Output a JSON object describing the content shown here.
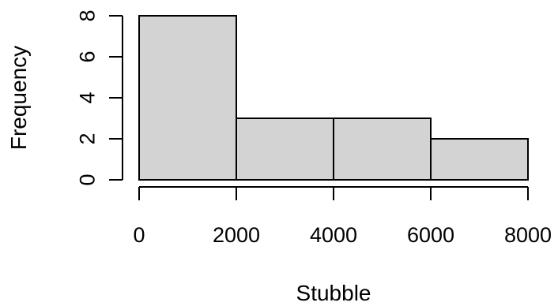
{
  "chart_data": {
    "type": "bar",
    "title": "",
    "xlabel": "Stubble",
    "ylabel": "Frequency",
    "bins": [
      {
        "x0": 0,
        "x1": 2000,
        "count": 8
      },
      {
        "x0": 2000,
        "x1": 4000,
        "count": 3
      },
      {
        "x0": 4000,
        "x1": 6000,
        "count": 3
      },
      {
        "x0": 6000,
        "x1": 8000,
        "count": 2
      }
    ],
    "xlim": [
      0,
      8000
    ],
    "ylim": [
      0,
      8
    ],
    "x_ticks": [
      0,
      2000,
      4000,
      6000,
      8000
    ],
    "x_tick_labels": [
      "0",
      "2000",
      "4000",
      "6000",
      "8000"
    ],
    "y_ticks": [
      0,
      2,
      4,
      6,
      8
    ],
    "y_tick_labels": [
      "0",
      "2",
      "4",
      "6",
      "8"
    ],
    "bar_color": "#d3d3d3",
    "grid": false,
    "legend": false
  }
}
